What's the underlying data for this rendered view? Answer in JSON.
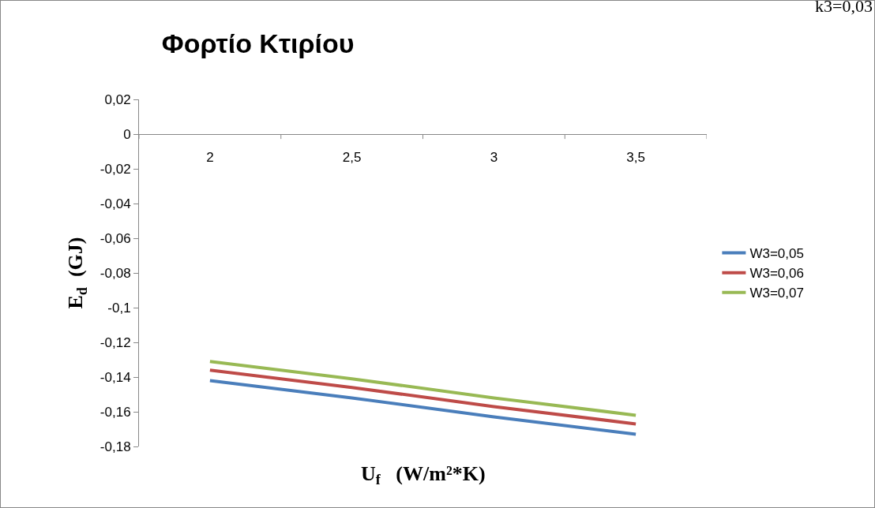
{
  "chart_data": {
    "type": "line",
    "title": "Φορτίο Κτιρίου",
    "xlabel": "U$_{f}$   (W/m²*K)",
    "ylabel": "E$_{d}$  (GJ)",
    "annotations": [
      "k3=0,03"
    ],
    "categories": [
      "2",
      "2,5",
      "3",
      "3,5"
    ],
    "series": [
      {
        "name": "W3=0,05",
        "color": "#4a7ebb",
        "values": [
          -0.142,
          -0.152,
          -0.163,
          -0.173
        ]
      },
      {
        "name": "W3=0,06",
        "color": "#be4b48",
        "values": [
          -0.136,
          -0.146,
          -0.157,
          -0.167
        ]
      },
      {
        "name": "W3=0,07",
        "color": "#98b954",
        "values": [
          -0.131,
          -0.141,
          -0.152,
          -0.162
        ]
      }
    ],
    "ylim": [
      -0.18,
      0.02
    ],
    "yticks": [
      {
        "value": 0.02,
        "label": "0,02"
      },
      0,
      {
        "value": -0.02,
        "label": "-0,02"
      },
      {
        "value": -0.04,
        "label": "-0,04"
      },
      {
        "value": -0.06,
        "label": "-0,06"
      },
      {
        "value": -0.08,
        "label": "-0,08"
      },
      {
        "value": -0.1,
        "label": "-0,1"
      },
      {
        "value": -0.12,
        "label": "-0,12"
      },
      {
        "value": -0.14,
        "label": "-0,14"
      },
      {
        "value": -0.16,
        "label": "-0,16"
      },
      {
        "value": -0.18,
        "label": "-0,18"
      }
    ],
    "grid": false,
    "legend": "right",
    "marker": "none",
    "line_style": "solid"
  }
}
